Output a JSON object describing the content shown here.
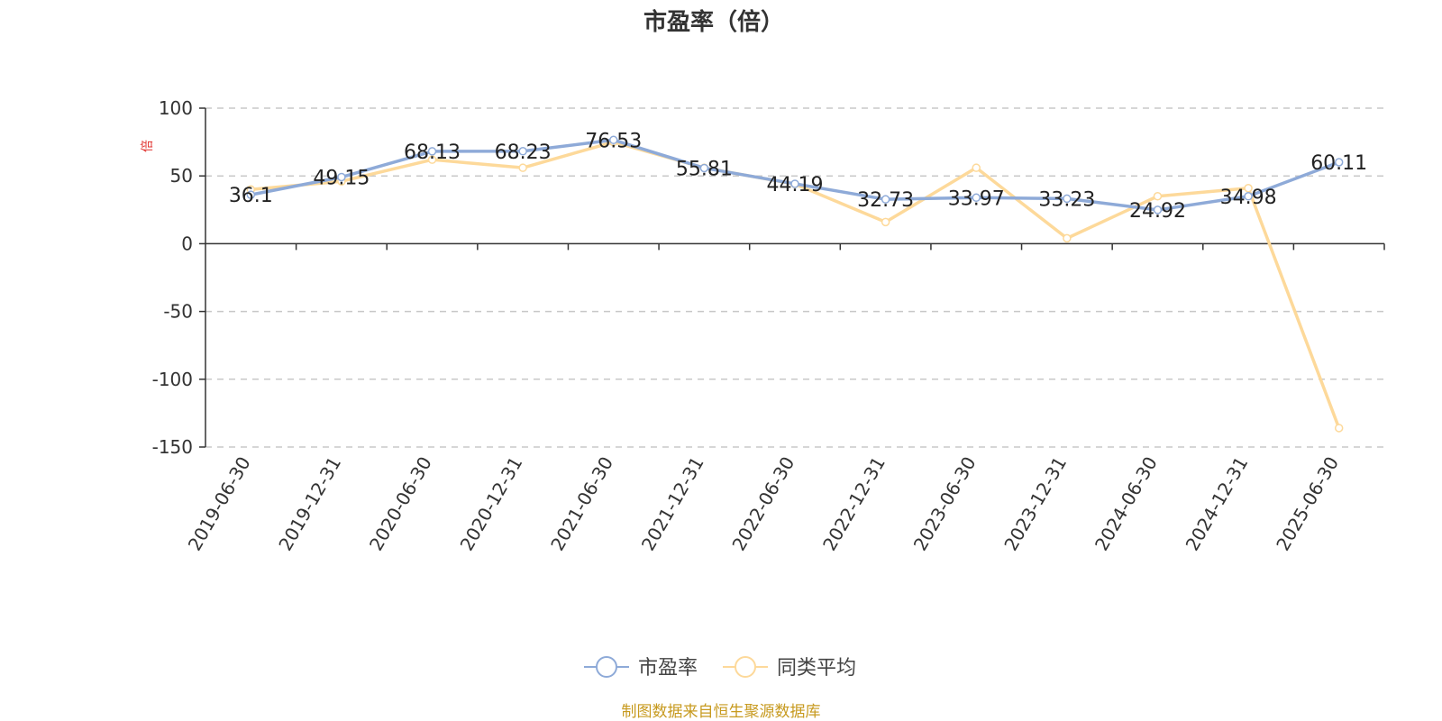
{
  "chart_data": {
    "type": "line",
    "title": "市盈率（倍）",
    "ylabel": "倍",
    "categories": [
      "2019-06-30",
      "2019-12-31",
      "2020-06-30",
      "2020-12-31",
      "2021-06-30",
      "2021-12-31",
      "2022-06-30",
      "2022-12-31",
      "2023-06-30",
      "2023-12-31",
      "2024-06-30",
      "2024-12-31",
      "2025-06-30"
    ],
    "series": [
      {
        "name": "市盈率",
        "color": "#8eaad8",
        "values": [
          36.1,
          49.15,
          68.13,
          68.23,
          76.53,
          55.81,
          44.19,
          32.73,
          33.97,
          33.23,
          24.92,
          34.98,
          60.11
        ],
        "labels": [
          "36.1",
          "49.15",
          "68.13",
          "68.23",
          "76.53",
          "55.81",
          "44.19",
          "32.73",
          "33.97",
          "33.23",
          "24.92",
          "34.98",
          "60.11"
        ]
      },
      {
        "name": "同类平均",
        "color": "#fdd99a",
        "values": [
          40,
          46,
          62,
          56,
          75,
          56,
          44,
          16,
          56,
          4,
          35,
          41,
          -136
        ]
      }
    ],
    "ylim": [
      -150,
      100
    ],
    "yticks": [
      100,
      50,
      0,
      -50,
      -100,
      -150
    ],
    "grid": true,
    "legend_position": "bottom-center"
  },
  "footer": {
    "source": "制图数据来自恒生聚源数据库"
  }
}
